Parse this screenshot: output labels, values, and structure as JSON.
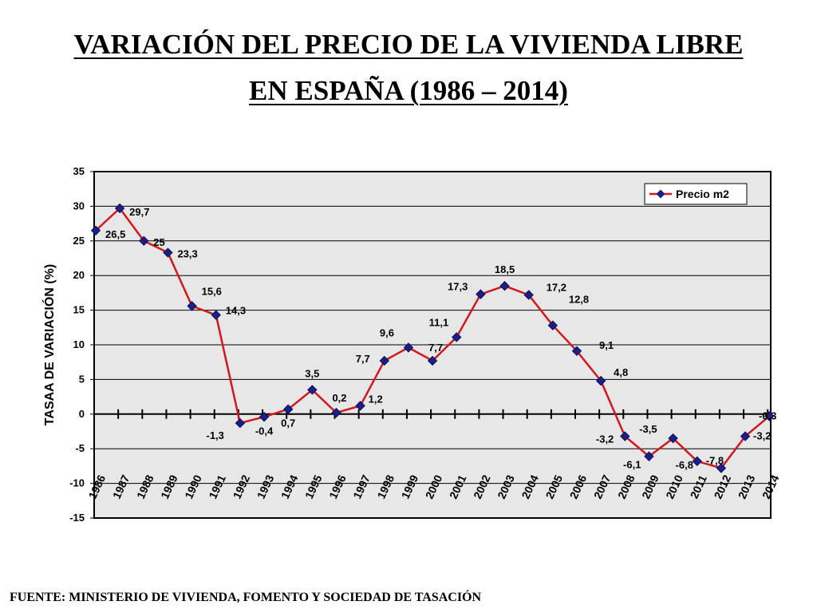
{
  "header": {
    "title_line1": "VARIACIÓN DEL PRECIO DE LA VIVIENDA LIBRE",
    "title_line2": "EN ESPAÑA (1986 – 2014)"
  },
  "footer": {
    "source": "FUENTE: MINISTERIO DE VIVIENDA, FOMENTO Y SOCIEDAD DE TASACIÓN"
  },
  "colors": {
    "line": "#d0191e",
    "marker": "#1b1f8a",
    "plot_bg": "#e7e7e7"
  },
  "chart_data": {
    "type": "line",
    "title": "VARIACIÓN DEL PRECIO DE LA VIVIENDA LIBRE EN ESPAÑA (1986 – 2014)",
    "xlabel": "",
    "ylabel": "TASAA DE VARIACIÓN (%)",
    "ylim": [
      -15,
      35
    ],
    "yticks": [
      -15,
      -10,
      -5,
      0,
      5,
      10,
      15,
      20,
      25,
      30,
      35
    ],
    "grid": true,
    "legend_position": "top-right",
    "categories": [
      "1986",
      "1987",
      "1988",
      "1989",
      "1990",
      "1991",
      "1992",
      "1993",
      "1994",
      "1995",
      "1996",
      "1997",
      "1998",
      "1999",
      "2000",
      "2001",
      "2002",
      "2003",
      "2004",
      "2005",
      "2006",
      "2007",
      "2008",
      "2009",
      "2010",
      "2011",
      "2012",
      "2013",
      "2014"
    ],
    "series": [
      {
        "name": "Precio m2",
        "values": [
          26.5,
          29.7,
          25,
          23.3,
          15.6,
          14.3,
          -1.3,
          -0.4,
          0.7,
          3.5,
          0.2,
          1.2,
          7.7,
          9.6,
          7.7,
          11.1,
          17.3,
          18.5,
          17.2,
          12.8,
          9.1,
          4.8,
          -3.2,
          -6.1,
          -3.5,
          -6.8,
          -7.8,
          -3.2,
          -0.3
        ],
        "labels": [
          "26,5",
          "29,7",
          "25",
          "23,3",
          "15,6",
          "14,3",
          "-1,3",
          "-0,4",
          "0,7",
          "3,5",
          "0,2",
          "1,2",
          "7,7",
          "9,6",
          "7,7",
          "11,1",
          "17,3",
          "18,5",
          "17,2",
          "12,8",
          "9,1",
          "4,8",
          "-3,2",
          "-6,1",
          "-3,5",
          "-6,8",
          "-7,8",
          "-3,2",
          "-0,3"
        ]
      }
    ]
  }
}
